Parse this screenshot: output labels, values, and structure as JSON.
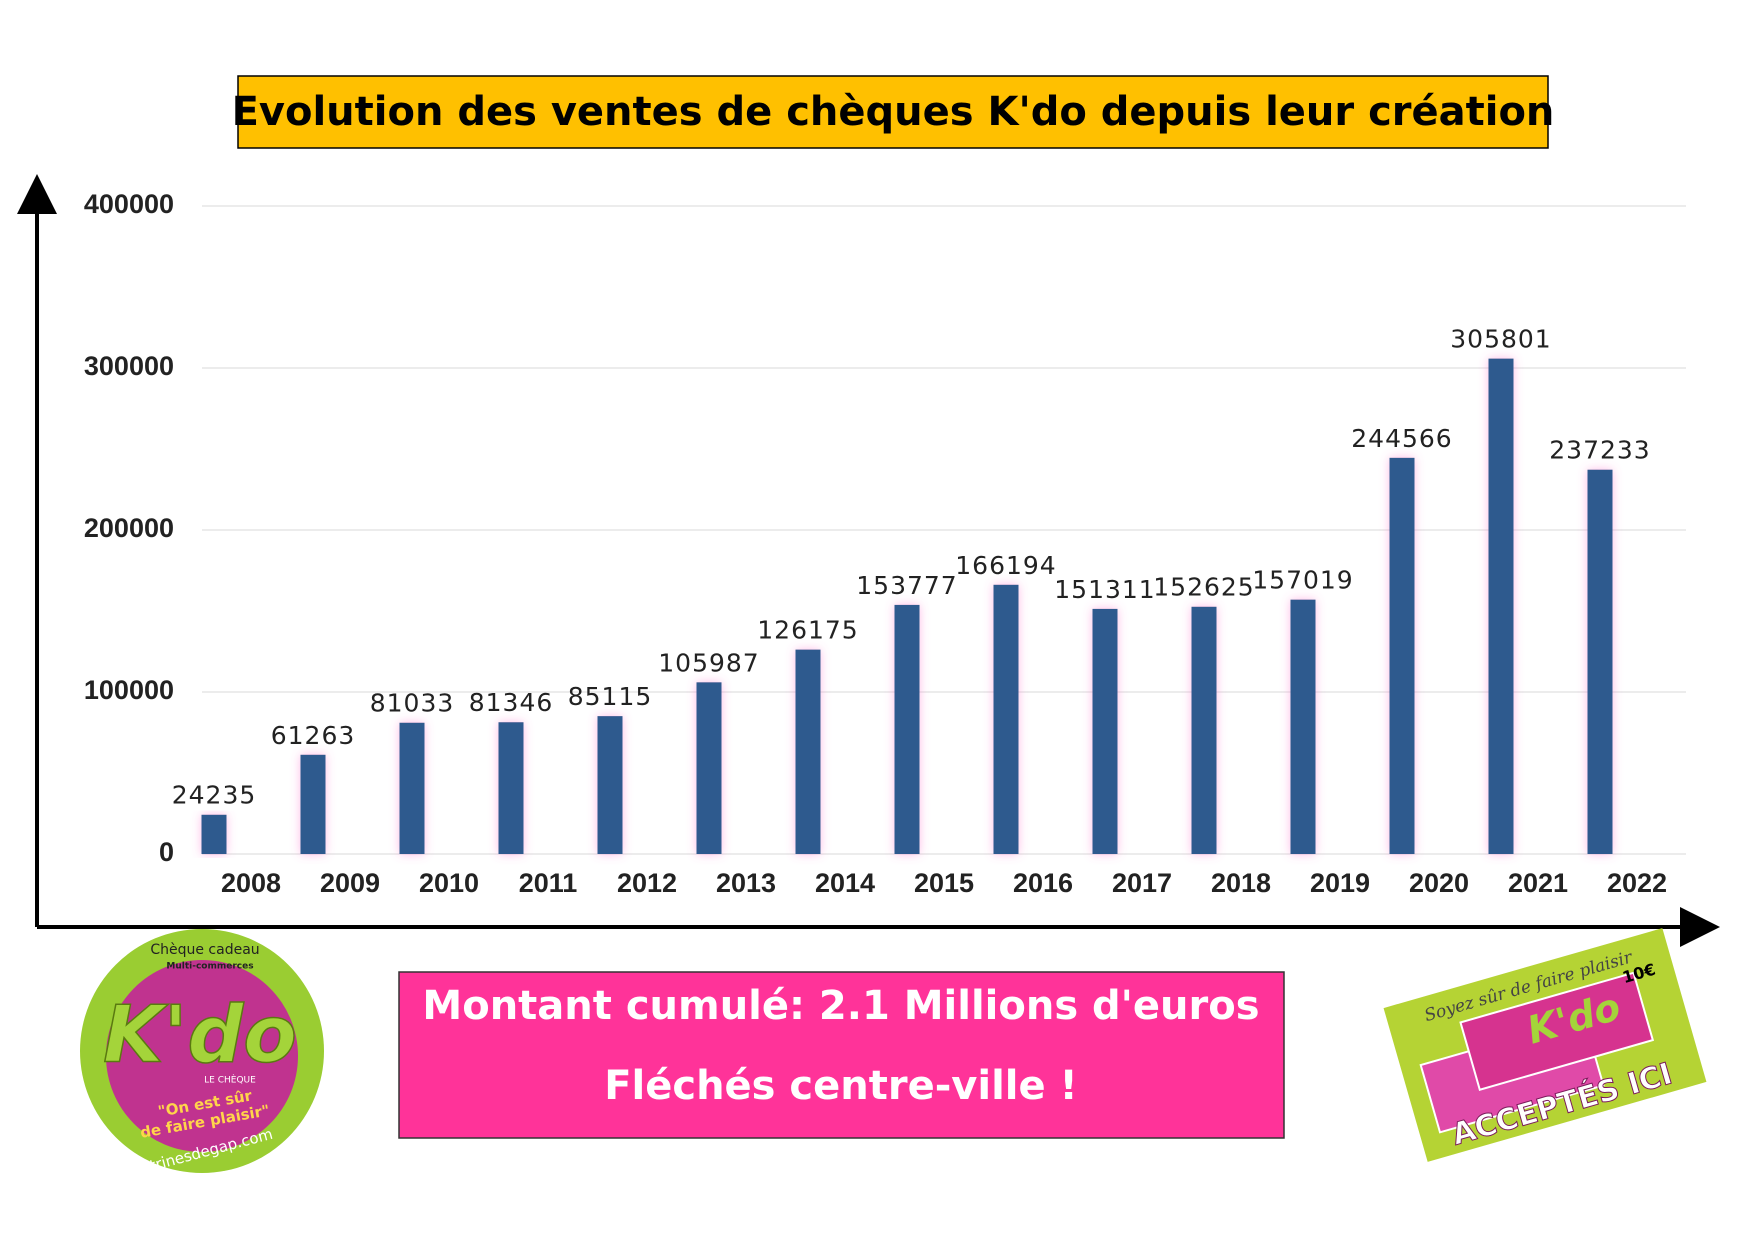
{
  "chart_data": {
    "type": "bar",
    "title": "Evolution des ventes de chèques K'do depuis leur création",
    "categories": [
      "2008",
      "2009",
      "2010",
      "2011",
      "2012",
      "2013",
      "2014",
      "2015",
      "2016",
      "2017",
      "2018",
      "2019",
      "2020",
      "2021",
      "2022"
    ],
    "values": [
      24235,
      61263,
      81033,
      81346,
      85115,
      105987,
      126175,
      153777,
      166194,
      151311,
      152625,
      157019,
      244566,
      305801,
      237233
    ],
    "color": "#2f5a8e",
    "ylim": [
      0,
      400000
    ],
    "yticks": [
      0,
      100000,
      200000,
      300000,
      400000
    ],
    "grid": true
  },
  "summary": {
    "lines": [
      "Montant cumulé: 2.1 Millions d'euros",
      "Fléchés centre-ville !"
    ]
  },
  "logo_left": {
    "top": "Chèque cadeau",
    "sub": "Multi-commerces",
    "brand": "K'do",
    "small": "LE CHÈQUE",
    "slogan1": "\"On est sûr",
    "slogan2": "de faire plaisir\"",
    "site": "vitrinesdegap.com"
  },
  "logo_right": {
    "script": "Soyez sûr de faire plaisir",
    "price": "10€",
    "brand": "K'do",
    "accepted": "ACCEPTÉS ICI"
  }
}
